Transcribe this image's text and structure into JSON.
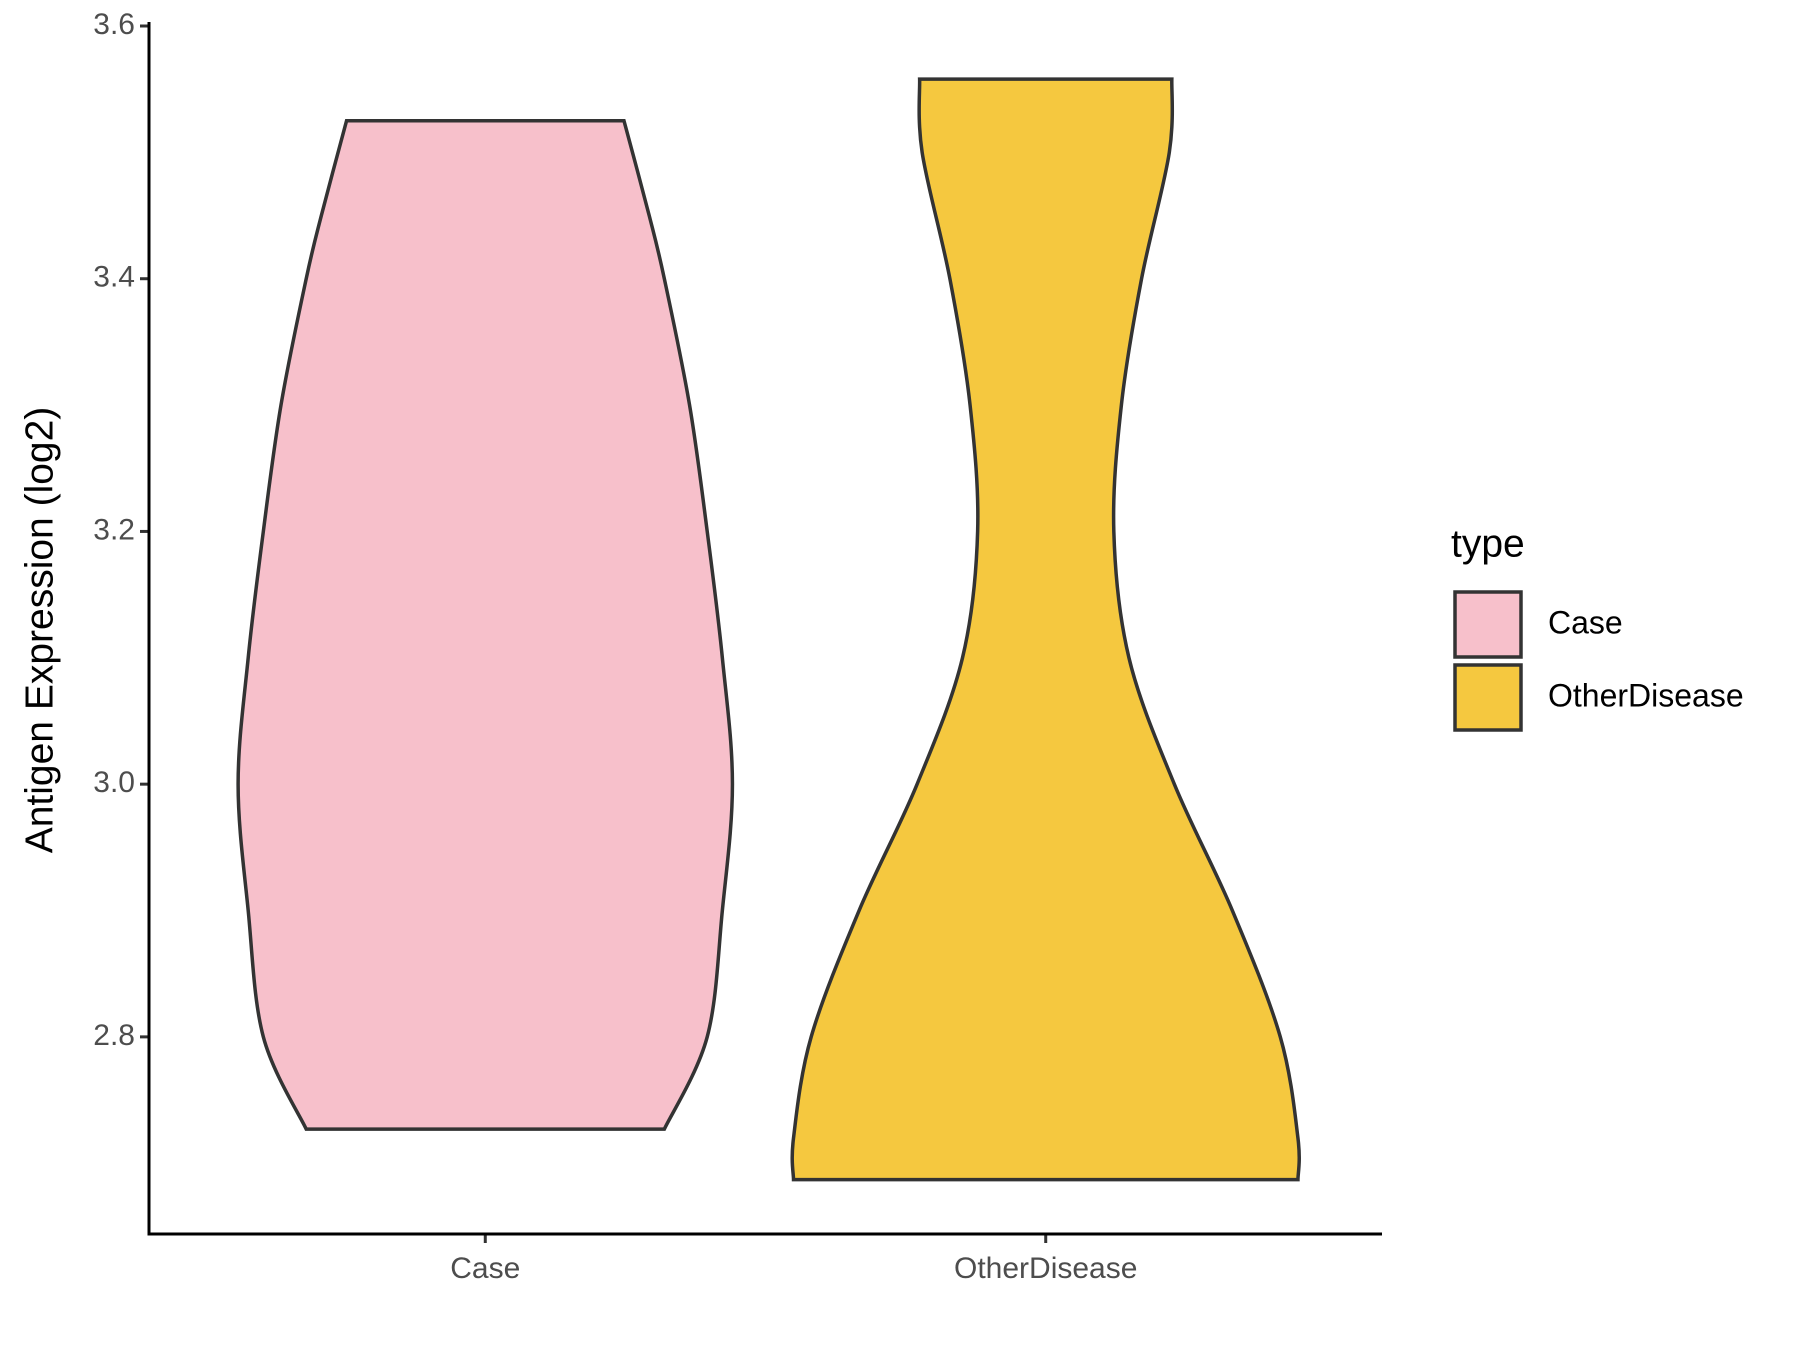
{
  "chart_data": {
    "type": "violin",
    "y_label": "Antigen Expression (log2)",
    "categories": [
      "Case",
      "OtherDisease"
    ],
    "legend_title": "type",
    "legend_position": "right",
    "series": [
      {
        "name": "Case",
        "color": "#F7C0CB",
        "y": [
          3.525,
          3.45,
          3.4,
          3.3,
          3.2,
          3.1,
          3.0,
          2.9,
          2.8,
          2.727
        ],
        "density": [
          0.55,
          0.65,
          0.71,
          0.81,
          0.88,
          0.94,
          0.98,
          0.94,
          0.88,
          0.71
        ]
      },
      {
        "name": "OtherDisease",
        "color": "#F5C83F",
        "y": [
          3.558,
          3.5,
          3.4,
          3.3,
          3.2,
          3.1,
          3.0,
          2.9,
          2.8,
          2.72,
          2.687
        ],
        "density": [
          0.5,
          0.49,
          0.38,
          0.3,
          0.27,
          0.33,
          0.51,
          0.74,
          0.93,
          1.0,
          1.0
        ]
      }
    ],
    "ylim": [
      2.644,
      3.6
    ],
    "yticks": [
      {
        "value": 2.8,
        "label": "2.8"
      },
      {
        "value": 3.0,
        "label": "3.0"
      },
      {
        "value": 3.2,
        "label": "3.2"
      },
      {
        "value": 3.4,
        "label": "3.4"
      },
      {
        "value": 3.6,
        "label": "3.6"
      }
    ],
    "grid": false
  }
}
